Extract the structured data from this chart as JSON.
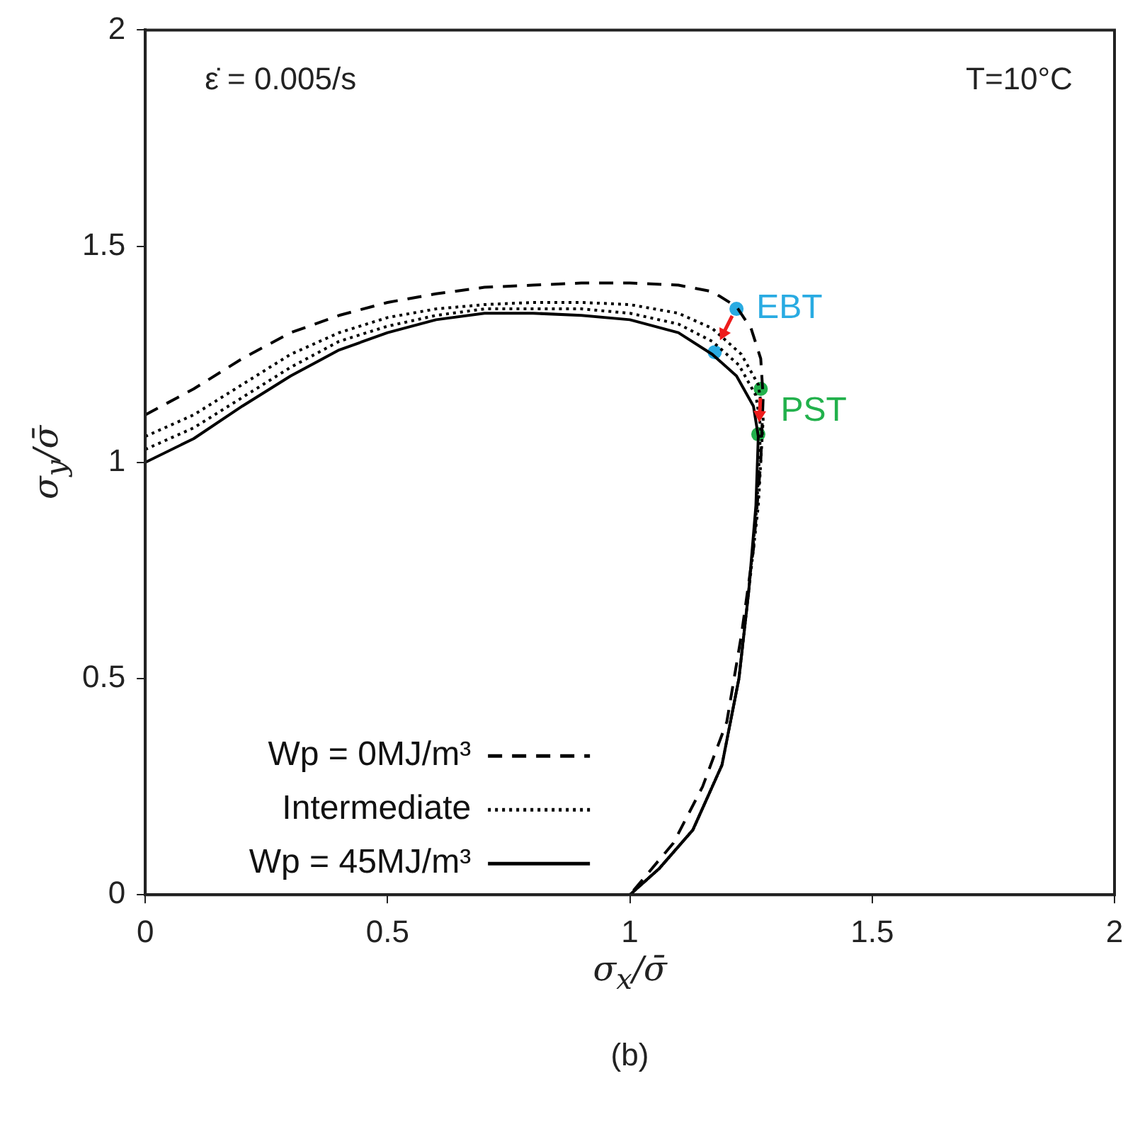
{
  "chart_data": {
    "type": "line",
    "xlabel": "σ$_{x}$/σ̄",
    "ylabel": "σ$_{y}$/σ̄",
    "xlim": [
      0,
      2
    ],
    "ylim": [
      0,
      2
    ],
    "xticks": [
      0,
      0.5,
      1,
      1.5,
      2
    ],
    "yticks": [
      0,
      0.5,
      1,
      1.5,
      2
    ],
    "grid": false,
    "legend": "bottom left",
    "annotations": [
      "ε̇ =  0.005/s",
      "T=10°C",
      "(b)"
    ],
    "series": [
      {
        "name": "Wp = 0MJ/m³",
        "line_style": "dashed",
        "color": "#000000",
        "x": [
          0,
          0.1,
          0.2,
          0.3,
          0.4,
          0.5,
          0.6,
          0.7,
          0.8,
          0.9,
          1.0,
          1.1,
          1.17,
          1.22,
          1.25,
          1.27,
          1.275,
          1.27,
          1.255,
          1.23,
          1.2,
          1.15,
          1.09,
          1.0
        ],
        "values": [
          1.11,
          1.17,
          1.24,
          1.3,
          1.34,
          1.37,
          1.39,
          1.405,
          1.41,
          1.415,
          1.415,
          1.41,
          1.395,
          1.36,
          1.31,
          1.24,
          1.15,
          1.0,
          0.8,
          0.6,
          0.4,
          0.25,
          0.12,
          0
        ]
      },
      {
        "name": "Intermediate",
        "line_style": "dotted",
        "color": "#000000",
        "x": [
          0,
          0.1,
          0.2,
          0.3,
          0.4,
          0.5,
          0.6,
          0.7,
          0.8,
          0.9,
          1.0,
          1.1,
          1.17,
          1.23,
          1.265,
          1.275,
          1.265,
          1.245,
          1.225,
          1.19,
          1.13,
          1.06,
          1.0
        ],
        "values": [
          1.06,
          1.11,
          1.18,
          1.25,
          1.3,
          1.335,
          1.355,
          1.365,
          1.37,
          1.37,
          1.365,
          1.345,
          1.31,
          1.25,
          1.18,
          1.1,
          0.9,
          0.7,
          0.5,
          0.3,
          0.15,
          0.06,
          0
        ]
      },
      {
        "line_style": "dotted",
        "color": "#000000",
        "x": [
          0,
          0.1,
          0.2,
          0.3,
          0.4,
          0.5,
          0.6,
          0.7,
          0.8,
          0.9,
          1.0,
          1.1,
          1.17,
          1.225,
          1.26,
          1.27,
          1.262,
          1.245,
          1.225,
          1.19,
          1.13,
          1.06,
          1.0
        ],
        "values": [
          1.03,
          1.08,
          1.15,
          1.22,
          1.28,
          1.315,
          1.34,
          1.355,
          1.355,
          1.355,
          1.345,
          1.32,
          1.28,
          1.225,
          1.155,
          1.08,
          0.9,
          0.7,
          0.5,
          0.3,
          0.15,
          0.06,
          0
        ]
      },
      {
        "name": "Wp = 45MJ/m³",
        "line_style": "solid",
        "color": "#000000",
        "x": [
          0,
          0.1,
          0.2,
          0.3,
          0.4,
          0.5,
          0.6,
          0.7,
          0.8,
          0.9,
          1.0,
          1.1,
          1.17,
          1.22,
          1.255,
          1.265,
          1.26,
          1.245,
          1.225,
          1.19,
          1.13,
          1.06,
          1.0
        ],
        "values": [
          1.0,
          1.055,
          1.13,
          1.2,
          1.26,
          1.3,
          1.33,
          1.345,
          1.345,
          1.34,
          1.33,
          1.3,
          1.25,
          1.2,
          1.13,
          1.06,
          0.9,
          0.7,
          0.5,
          0.3,
          0.15,
          0.06,
          0
        ]
      },
      {
        "name": "EBT",
        "type": "scatter",
        "color": "#29abe2",
        "x": [
          1.22,
          1.175
        ],
        "values": [
          1.355,
          1.255
        ]
      },
      {
        "name": "PST",
        "type": "scatter",
        "color": "#22b14c",
        "x": [
          1.27,
          1.265
        ],
        "values": [
          1.17,
          1.065
        ]
      }
    ]
  }
}
